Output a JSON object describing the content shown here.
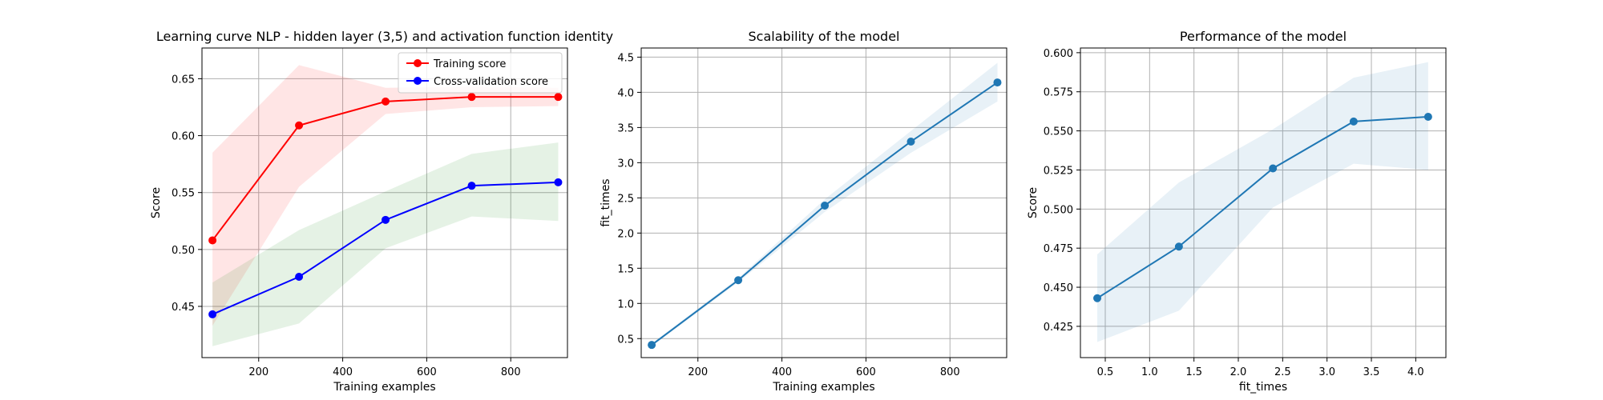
{
  "chart_data": [
    {
      "type": "line",
      "title": "Learning curve NLP - hidden layer (3,5) and activation function identity",
      "xlabel": "Training examples",
      "ylabel": "Score",
      "xlim": [
        65,
        935
      ],
      "ylim": [
        0.405,
        0.677
      ],
      "xticks": [
        200,
        400,
        600,
        800
      ],
      "yticks": [
        0.45,
        0.5,
        0.55,
        0.6,
        0.65
      ],
      "xtick_labels": [
        "200",
        "400",
        "600",
        "800"
      ],
      "ytick_labels": [
        "0.45",
        "0.50",
        "0.55",
        "0.60",
        "0.65"
      ],
      "grid": true,
      "legend_position": "top-right",
      "x": [
        90,
        296,
        502,
        707,
        913
      ],
      "series": [
        {
          "name": "Training score",
          "color": "#ff0000",
          "values": [
            0.508,
            0.609,
            0.63,
            0.634,
            0.634
          ],
          "band_lower": [
            0.433,
            0.555,
            0.619,
            0.625,
            0.626
          ],
          "band_upper": [
            0.585,
            0.662,
            0.642,
            0.643,
            0.642
          ],
          "band_color": "#ff0000"
        },
        {
          "name": "Cross-validation score",
          "color": "#0000ff",
          "values": [
            0.443,
            0.476,
            0.526,
            0.556,
            0.559
          ],
          "band_lower": [
            0.415,
            0.435,
            0.501,
            0.529,
            0.525
          ],
          "band_upper": [
            0.471,
            0.517,
            0.551,
            0.584,
            0.594
          ],
          "band_color": "#008000"
        }
      ]
    },
    {
      "type": "line",
      "title": "Scalability of the model",
      "xlabel": "Training examples",
      "ylabel": "fit_times",
      "xlim": [
        65,
        935
      ],
      "ylim": [
        0.23,
        4.63
      ],
      "xticks": [
        200,
        400,
        600,
        800
      ],
      "yticks": [
        0.5,
        1.0,
        1.5,
        2.0,
        2.5,
        3.0,
        3.5,
        4.0,
        4.5
      ],
      "xtick_labels": [
        "200",
        "400",
        "600",
        "800"
      ],
      "ytick_labels": [
        "0.5",
        "1.0",
        "1.5",
        "2.0",
        "2.5",
        "3.0",
        "3.5",
        "4.0",
        "4.5"
      ],
      "grid": true,
      "x": [
        90,
        296,
        502,
        707,
        913
      ],
      "series": [
        {
          "color": "#1f77b4",
          "values": [
            0.41,
            1.33,
            2.39,
            3.3,
            4.14
          ],
          "band_lower": [
            0.39,
            1.3,
            2.3,
            3.14,
            3.87
          ],
          "band_upper": [
            0.43,
            1.36,
            2.48,
            3.45,
            4.42
          ],
          "band_color": "#1f77b4"
        }
      ]
    },
    {
      "type": "line",
      "title": "Performance of the model",
      "xlabel": "fit_times",
      "ylabel": "Score",
      "xlim": [
        0.22,
        4.34
      ],
      "ylim": [
        0.405,
        0.603
      ],
      "xticks": [
        0.5,
        1.0,
        1.5,
        2.0,
        2.5,
        3.0,
        3.5,
        4.0
      ],
      "yticks": [
        0.425,
        0.45,
        0.475,
        0.5,
        0.525,
        0.55,
        0.575,
        0.6
      ],
      "xtick_labels": [
        "0.5",
        "1.0",
        "1.5",
        "2.0",
        "2.5",
        "3.0",
        "3.5",
        "4.0"
      ],
      "ytick_labels": [
        "0.425",
        "0.450",
        "0.475",
        "0.500",
        "0.525",
        "0.550",
        "0.575",
        "0.600"
      ],
      "grid": true,
      "x": [
        0.41,
        1.33,
        2.39,
        3.3,
        4.14
      ],
      "series": [
        {
          "color": "#1f77b4",
          "values": [
            0.443,
            0.476,
            0.526,
            0.556,
            0.559
          ],
          "band_lower": [
            0.415,
            0.435,
            0.501,
            0.529,
            0.525
          ],
          "band_upper": [
            0.471,
            0.517,
            0.551,
            0.584,
            0.594
          ],
          "band_color": "#1f77b4"
        }
      ]
    }
  ]
}
